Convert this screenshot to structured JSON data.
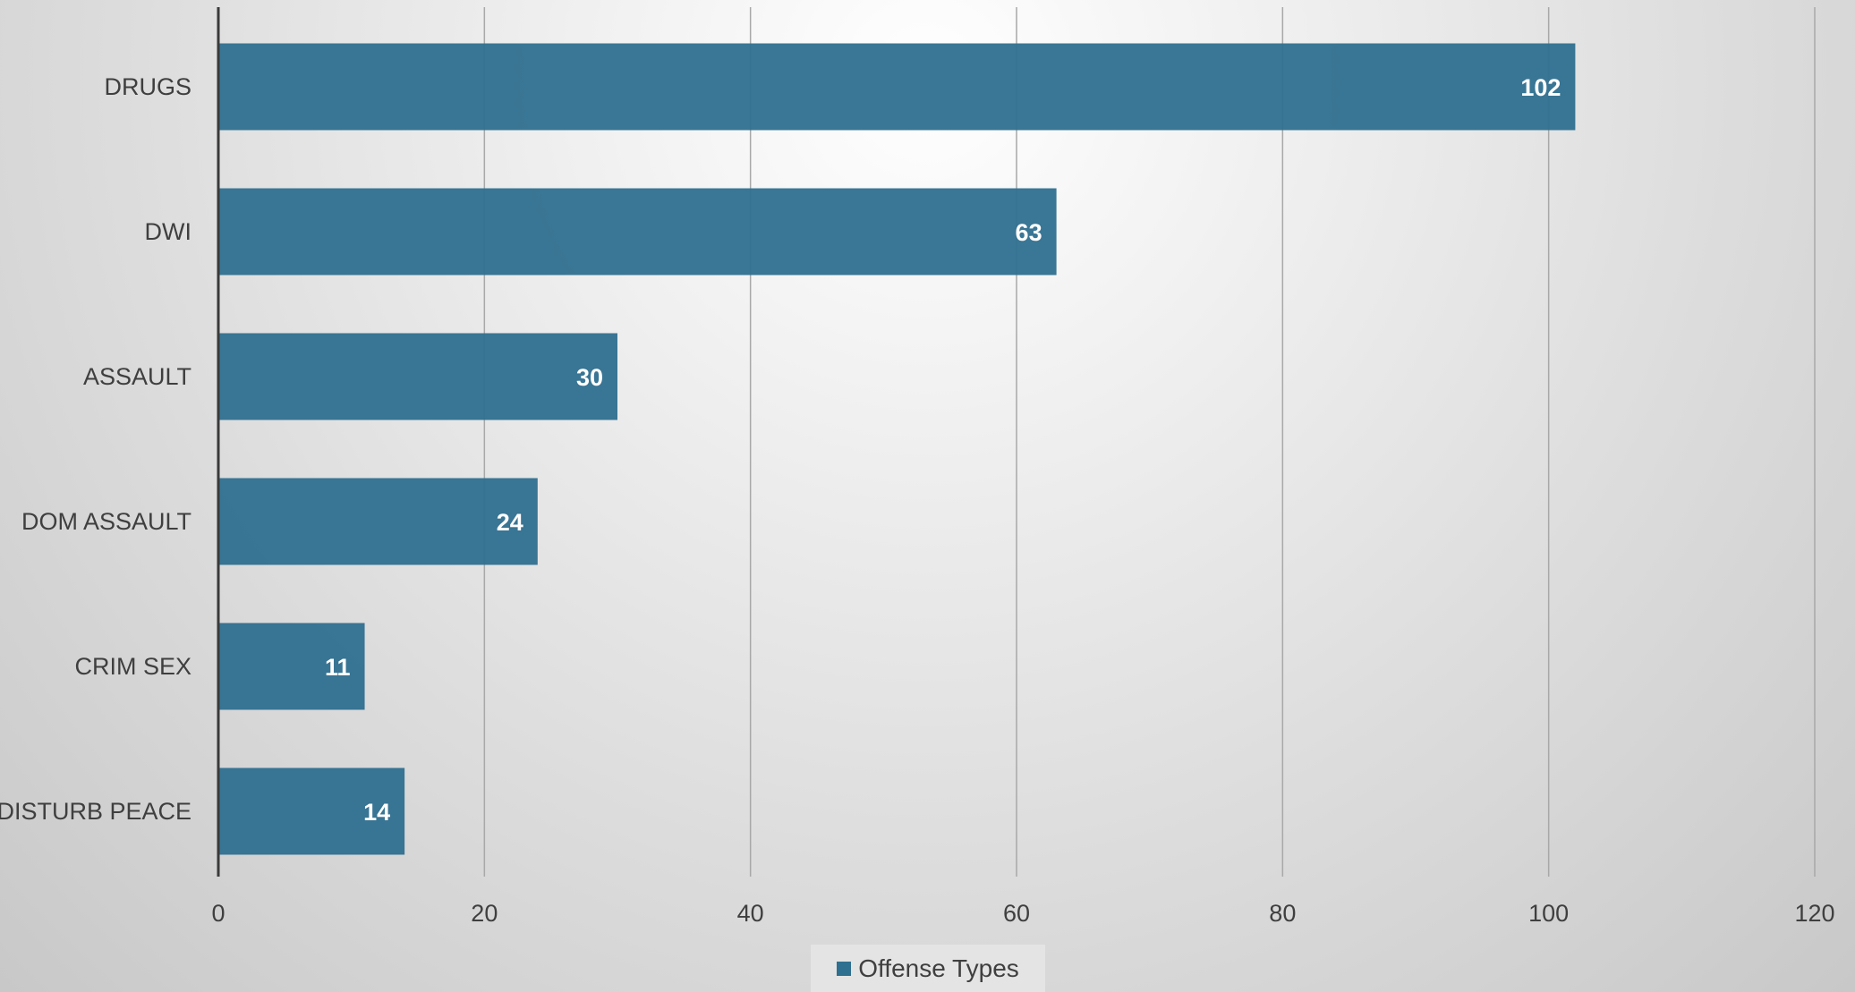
{
  "chart_data": {
    "type": "bar",
    "orientation": "horizontal",
    "categories": [
      "DRUGS",
      "DWI",
      "ASSAULT",
      "DOM ASSAULT",
      "CRIM SEX",
      "DISTURB PEACE"
    ],
    "series": [
      {
        "name": "Offense Types",
        "values": [
          102,
          63,
          30,
          24,
          11,
          14
        ],
        "color": "#2f6f8f"
      }
    ],
    "xlim": [
      0,
      120
    ],
    "x_ticks": [
      0,
      20,
      40,
      60,
      80,
      100,
      120
    ],
    "xlabel": "",
    "ylabel": "",
    "grid": "vertical",
    "data_labels": true,
    "legend_position": "bottom"
  }
}
